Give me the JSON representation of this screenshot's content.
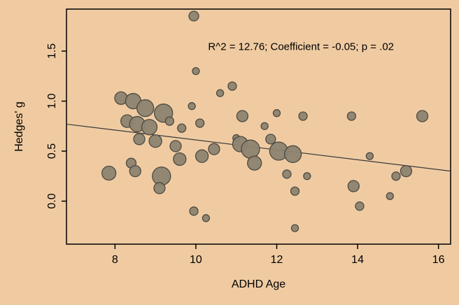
{
  "figure": {
    "background": "#f0cba2"
  },
  "chart_data": {
    "type": "scatter",
    "variant": "bubble",
    "title": "",
    "xlabel": "ADHD Age",
    "ylabel": "Hedges' g",
    "annotation": "R^2 = 12.76; Coefficient = -0.05; p = .02",
    "annotation_pos": {
      "x": 12.6,
      "y": 1.51
    },
    "xlim": [
      6.8,
      16.3
    ],
    "ylim": [
      -0.43,
      1.92
    ],
    "x_ticks": [
      8,
      10,
      12,
      14,
      16
    ],
    "x_tick_labels": [
      "8",
      "10",
      "12",
      "14",
      "16"
    ],
    "y_ticks": [
      0.0,
      0.5,
      1.0,
      1.5
    ],
    "y_tick_labels": [
      "0.0",
      "0.5",
      "1.0",
      "1.5"
    ],
    "grid": false,
    "legend": false,
    "regression_line": {
      "x1": 6.8,
      "y1": 0.77,
      "x2": 16.3,
      "y2": 0.3,
      "slope": -0.05,
      "intercept": 1.1
    },
    "points": [
      [
        9.95,
        1.85,
        7
      ],
      [
        10.0,
        1.3,
        5
      ],
      [
        8.15,
        1.03,
        9
      ],
      [
        8.45,
        1.0,
        11
      ],
      [
        8.75,
        0.93,
        12
      ],
      [
        9.2,
        0.88,
        13
      ],
      [
        9.9,
        0.95,
        5
      ],
      [
        8.3,
        0.8,
        9
      ],
      [
        8.55,
        0.77,
        11
      ],
      [
        8.85,
        0.74,
        11
      ],
      [
        8.6,
        0.62,
        8
      ],
      [
        9.0,
        0.6,
        9
      ],
      [
        9.35,
        0.8,
        6
      ],
      [
        9.65,
        0.73,
        6
      ],
      [
        9.5,
        0.55,
        8
      ],
      [
        8.4,
        0.38,
        7
      ],
      [
        8.5,
        0.3,
        8
      ],
      [
        7.85,
        0.28,
        10
      ],
      [
        9.15,
        0.25,
        13
      ],
      [
        9.1,
        0.13,
        8
      ],
      [
        9.6,
        0.42,
        9
      ],
      [
        10.1,
        0.78,
        6
      ],
      [
        10.15,
        0.45,
        9
      ],
      [
        10.45,
        0.52,
        8
      ],
      [
        9.95,
        -0.1,
        6
      ],
      [
        10.25,
        -0.17,
        5
      ],
      [
        10.6,
        1.08,
        5
      ],
      [
        10.9,
        1.15,
        6
      ],
      [
        11.0,
        0.63,
        5
      ],
      [
        11.15,
        0.85,
        8
      ],
      [
        11.1,
        0.57,
        11
      ],
      [
        11.35,
        0.52,
        13
      ],
      [
        11.45,
        0.38,
        10
      ],
      [
        11.7,
        0.75,
        5
      ],
      [
        11.85,
        0.62,
        7
      ],
      [
        12.0,
        0.88,
        5
      ],
      [
        12.05,
        0.5,
        13
      ],
      [
        12.4,
        0.47,
        12
      ],
      [
        12.25,
        0.27,
        6
      ],
      [
        12.45,
        0.1,
        6
      ],
      [
        12.45,
        -0.27,
        5
      ],
      [
        12.65,
        0.85,
        6
      ],
      [
        12.75,
        0.25,
        5
      ],
      [
        13.85,
        0.85,
        6
      ],
      [
        13.9,
        0.15,
        8
      ],
      [
        14.05,
        -0.05,
        6
      ],
      [
        14.3,
        0.45,
        5
      ],
      [
        14.8,
        0.05,
        5
      ],
      [
        14.95,
        0.25,
        6
      ],
      [
        15.2,
        0.3,
        8
      ],
      [
        15.6,
        0.85,
        8
      ]
    ],
    "colors": {
      "background": "#f0cba2",
      "bubble_fill": "#8c8370",
      "bubble_stroke": "#4d4a42",
      "axis": "#000000",
      "line": "#3a3a3a"
    }
  }
}
